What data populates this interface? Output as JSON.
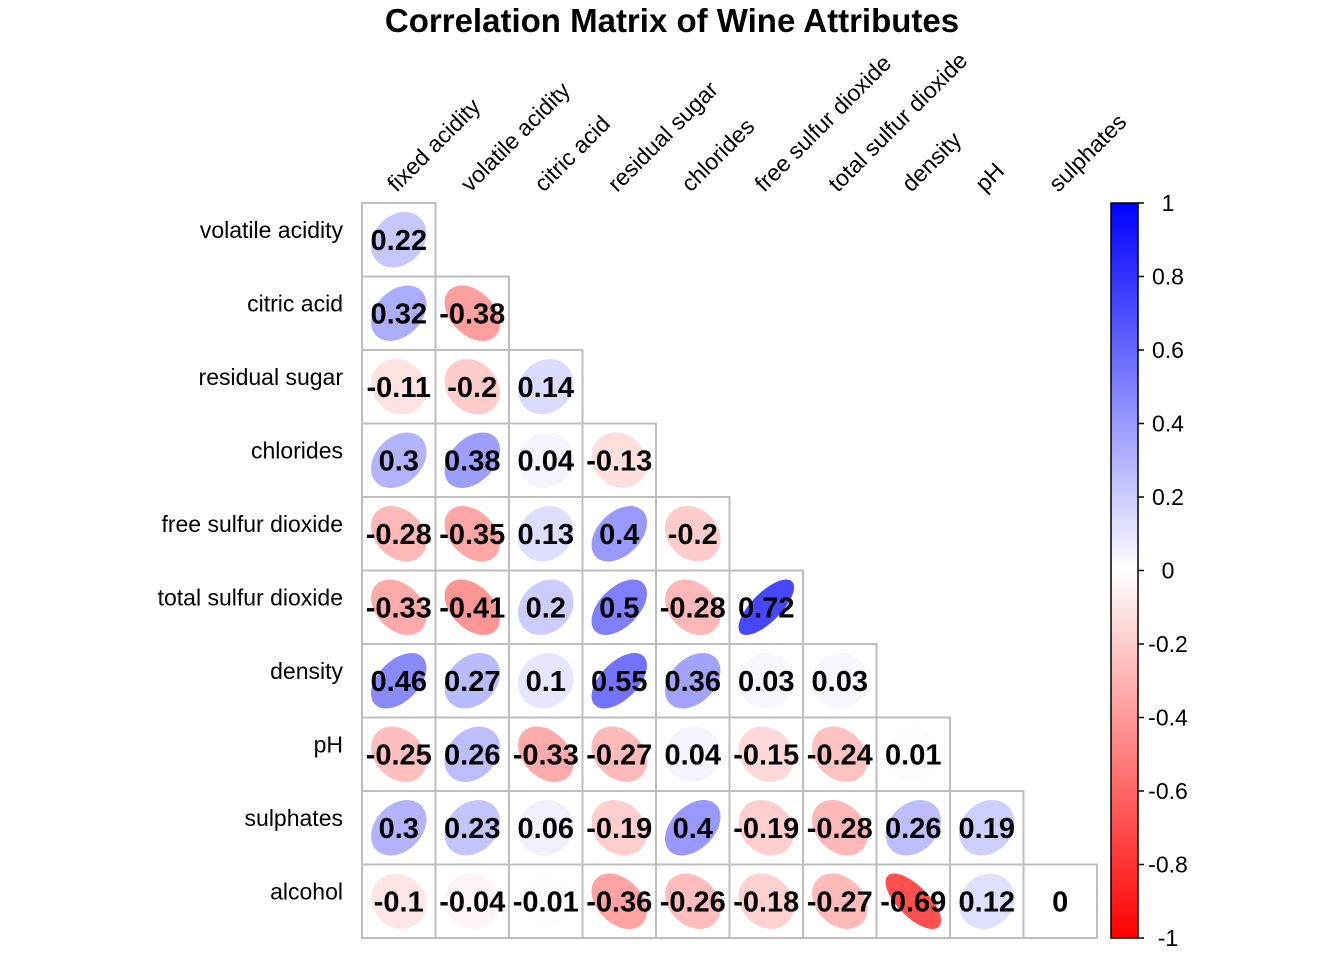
{
  "chart_data": {
    "type": "heatmap",
    "title": "Correlation Matrix of Wine Attributes",
    "variables": [
      "fixed acidity",
      "volatile acidity",
      "citric acid",
      "residual sugar",
      "chlorides",
      "free sulfur dioxide",
      "total sulfur dioxide",
      "density",
      "pH",
      "sulphates",
      "alcohol"
    ],
    "column_labels": [
      "fixed acidity",
      "volatile acidity",
      "citric acid",
      "residual sugar",
      "chlorides",
      "free sulfur dioxide",
      "total sulfur dioxide",
      "density",
      "pH",
      "sulphates"
    ],
    "row_labels": [
      "volatile acidity",
      "citric acid",
      "residual sugar",
      "chlorides",
      "free sulfur dioxide",
      "total sulfur dioxide",
      "density",
      "pH",
      "sulphates",
      "alcohol"
    ],
    "lower_triangle_values": [
      [
        0.22
      ],
      [
        0.32,
        -0.38
      ],
      [
        -0.11,
        -0.2,
        0.14
      ],
      [
        0.3,
        0.38,
        0.04,
        -0.13
      ],
      [
        -0.28,
        -0.35,
        0.13,
        0.4,
        -0.2
      ],
      [
        -0.33,
        -0.41,
        0.2,
        0.5,
        -0.28,
        0.72
      ],
      [
        0.46,
        0.27,
        0.1,
        0.55,
        0.36,
        0.03,
        0.03
      ],
      [
        -0.25,
        0.26,
        -0.33,
        -0.27,
        0.04,
        -0.15,
        -0.24,
        0.01
      ],
      [
        0.3,
        0.23,
        0.06,
        -0.19,
        0.4,
        -0.19,
        -0.28,
        0.26,
        0.19
      ],
      [
        -0.1,
        -0.04,
        -0.01,
        -0.36,
        -0.26,
        -0.18,
        -0.27,
        -0.69,
        0.12,
        0
      ]
    ],
    "value_labels": [
      [
        "0.22"
      ],
      [
        "0.32",
        "-0.38"
      ],
      [
        "-0.11",
        "-0.2",
        "0.14"
      ],
      [
        "0.3",
        "0.38",
        "0.04",
        "-0.13"
      ],
      [
        "-0.28",
        "-0.35",
        "0.13",
        "0.4",
        "-0.2"
      ],
      [
        "-0.33",
        "-0.41",
        "0.2",
        "0.5",
        "-0.28",
        "0.72"
      ],
      [
        "0.46",
        "0.27",
        "0.1",
        "0.55",
        "0.36",
        "0.03",
        "0.03"
      ],
      [
        "-0.25",
        "0.26",
        "-0.33",
        "-0.27",
        "0.04",
        "-0.15",
        "-0.24",
        "0.01"
      ],
      [
        "0.3",
        "0.23",
        "0.06",
        "-0.19",
        "0.4",
        "-0.19",
        "-0.28",
        "0.26",
        "0.19"
      ],
      [
        "-0.1",
        "-0.04",
        "-0.01",
        "-0.36",
        "-0.26",
        "-0.18",
        "-0.27",
        "-0.69",
        "0.12",
        "0"
      ]
    ],
    "glyph": "ellipse",
    "color_scale": {
      "range": [
        -1,
        1
      ],
      "low_color": "#ff0000",
      "mid_color": "#ffffff",
      "high_color": "#0000ff",
      "ticks": [
        "1",
        "0.8",
        "0.6",
        "0.4",
        "0.2",
        "0",
        "-0.2",
        "-0.4",
        "-0.6",
        "-0.8",
        "-1"
      ],
      "tick_values": [
        1,
        0.8,
        0.6,
        0.4,
        0.2,
        0,
        -0.2,
        -0.4,
        -0.6,
        -0.8,
        -1
      ],
      "legend_position": "right"
    },
    "grid_color": "#bebebe"
  }
}
